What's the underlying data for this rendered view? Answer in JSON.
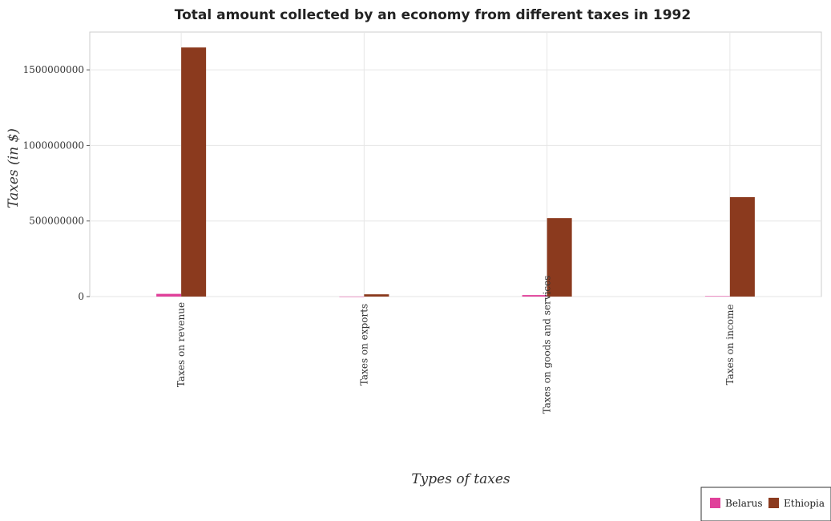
{
  "chart_data": {
    "type": "bar",
    "title": "Total amount collected by an economy from different taxes in 1992",
    "xlabel": "Types of taxes",
    "ylabel": "Taxes (in $)",
    "categories": [
      "Taxes on revenue",
      "Taxes on exports",
      "Taxes on goods and services",
      "Taxes on income"
    ],
    "series": [
      {
        "name": "Belarus",
        "color": "#e0409a",
        "values": [
          18000000,
          300000,
          10000000,
          3000000
        ]
      },
      {
        "name": "Ethiopia",
        "color": "#8b3a1e",
        "values": [
          1648000000,
          15000000,
          519000000,
          658000000
        ]
      }
    ],
    "ylim": [
      0,
      1750000000
    ],
    "yticks": [
      0,
      500000000,
      1000000000,
      1500000000
    ],
    "ytick_labels": [
      "0",
      "500000000",
      "1000000000",
      "1500000000"
    ],
    "grid": true,
    "legend_position": "bottom-right"
  }
}
